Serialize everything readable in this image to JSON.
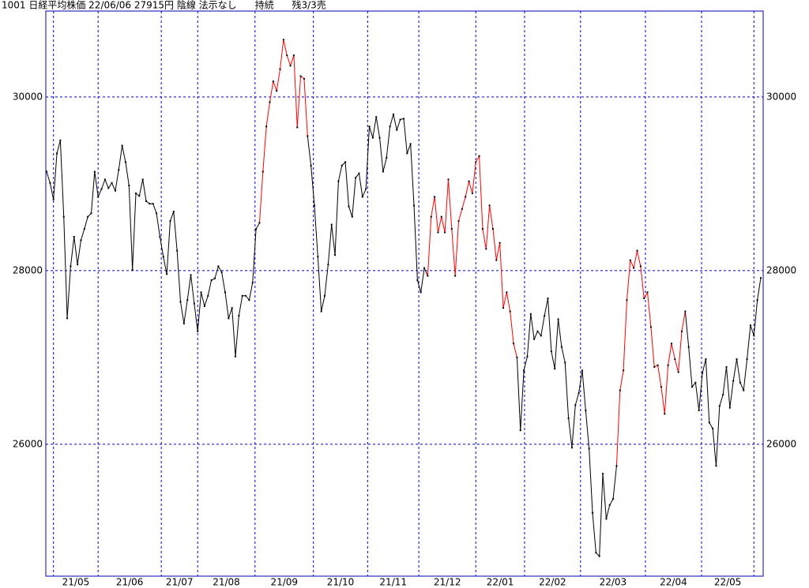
{
  "chart_data": {
    "type": "line",
    "title": "1001 日経平均株価 22/06/06 27915円 陰線 法示なし      持続      残3/3売",
    "values": [
      29140,
      29010,
      28820,
      29350,
      29500,
      28620,
      27450,
      28050,
      28390,
      28070,
      28350,
      28480,
      28620,
      28660,
      29140,
      28850,
      28940,
      29050,
      28950,
      29010,
      28920,
      29160,
      29440,
      29250,
      28980,
      28010,
      28890,
      28860,
      29050,
      28800,
      28770,
      28770,
      28660,
      28390,
      28160,
      27960,
      28570,
      28680,
      28230,
      27640,
      27390,
      27660,
      27950,
      27620,
      27300,
      27750,
      27590,
      27710,
      27890,
      27910,
      28050,
      27980,
      27750,
      27450,
      27570,
      27010,
      27480,
      27710,
      27710,
      27660,
      27860,
      28480,
      28550,
      29140,
      29660,
      29940,
      30180,
      30070,
      30320,
      30660,
      30480,
      30360,
      30480,
      29650,
      30240,
      30210,
      29550,
      29210,
      28750,
      28160,
      27530,
      27710,
      28070,
      28530,
      28180,
      29030,
      29210,
      29250,
      28740,
      28620,
      29070,
      29120,
      28850,
      28940,
      29660,
      29530,
      29770,
      29530,
      29140,
      29300,
      29660,
      29800,
      29620,
      29740,
      29750,
      29350,
      29460,
      28750,
      27890,
      27750,
      28030,
      27940,
      28620,
      28850,
      28440,
      28620,
      28440,
      29050,
      28480,
      27940,
      28570,
      28710,
      28850,
      29030,
      28890,
      29250,
      29320,
      28480,
      28250,
      28750,
      28480,
      28120,
      28320,
      27570,
      27750,
      27530,
      27160,
      27000,
      26160,
      26850,
      27010,
      27500,
      27210,
      27300,
      27250,
      27480,
      27680,
      27070,
      26870,
      27440,
      27120,
      26940,
      26300,
      25960,
      26450,
      26590,
      26850,
      26390,
      25950,
      25210,
      24750,
      24710,
      25660,
      25140,
      25300,
      25370,
      25750,
      26620,
      26850,
      27660,
      28120,
      28030,
      28230,
      28050,
      27680,
      27750,
      27350,
      26890,
      26910,
      26660,
      26350,
      26910,
      27160,
      26980,
      26830,
      27300,
      27530,
      27120,
      26660,
      26710,
      26390,
      26820,
      26980,
      26250,
      26180,
      25750,
      26440,
      26570,
      26890,
      26420,
      26730,
      26980,
      26710,
      26620,
      26980,
      27370,
      27250,
      27660,
      27915
    ],
    "segment_colors": [
      "black",
      "black",
      "black",
      "black",
      "black",
      "black",
      "black",
      "black",
      "black",
      "black",
      "black",
      "black",
      "black",
      "black",
      "black",
      "black",
      "black",
      "black",
      "black",
      "black",
      "black",
      "black",
      "black",
      "black",
      "black",
      "black",
      "black",
      "black",
      "black",
      "black",
      "black",
      "black",
      "black",
      "black",
      "black",
      "black",
      "black",
      "black",
      "black",
      "black",
      "black",
      "black",
      "black",
      "black",
      "black",
      "black",
      "black",
      "black",
      "black",
      "black",
      "black",
      "black",
      "black",
      "black",
      "black",
      "black",
      "black",
      "black",
      "black",
      "black",
      "black",
      "black",
      "black",
      "red",
      "red",
      "red",
      "red",
      "red",
      "red",
      "red",
      "red",
      "red",
      "red",
      "red",
      "red",
      "red",
      "red",
      "black",
      "black",
      "black",
      "black",
      "black",
      "black",
      "black",
      "black",
      "black",
      "black",
      "black",
      "black",
      "black",
      "black",
      "black",
      "black",
      "black",
      "black",
      "black",
      "black",
      "black",
      "black",
      "black",
      "black",
      "black",
      "black",
      "black",
      "black",
      "black",
      "black",
      "black",
      "black",
      "black",
      "black",
      "black",
      "red",
      "red",
      "red",
      "red",
      "red",
      "red",
      "red",
      "red",
      "red",
      "red",
      "red",
      "red",
      "red",
      "red",
      "red",
      "red",
      "red",
      "red",
      "red",
      "red",
      "red",
      "red",
      "red",
      "red",
      "red",
      "red",
      "black",
      "black",
      "black",
      "black",
      "black",
      "black",
      "black",
      "black",
      "black",
      "black",
      "black",
      "black",
      "black",
      "black",
      "black",
      "black",
      "black",
      "black",
      "black",
      "black",
      "black",
      "black",
      "black",
      "black",
      "black",
      "black",
      "black",
      "black",
      "black",
      "red",
      "red",
      "red",
      "red",
      "red",
      "red",
      "red",
      "red",
      "red",
      "red",
      "red",
      "red",
      "red",
      "red",
      "red",
      "red",
      "red",
      "red",
      "red",
      "red",
      "black",
      "black",
      "black",
      "black",
      "black",
      "black",
      "black",
      "black",
      "black",
      "black",
      "black",
      "black",
      "black",
      "black",
      "black",
      "black",
      "black",
      "black",
      "black",
      "black",
      "black",
      "black"
    ],
    "point_color": "black",
    "xlim": [
      -0.23,
      208.7
    ],
    "xticks": [
      {
        "value": 2,
        "label": "21/05"
      },
      {
        "value": 15,
        "label": "21/06"
      },
      {
        "value": 33.4,
        "label": "21/07"
      },
      {
        "value": 44,
        "label": "21/08"
      },
      {
        "value": 60.7,
        "label": "21/09"
      },
      {
        "value": 77.7,
        "label": "21/10"
      },
      {
        "value": 93.5,
        "label": "21/11"
      },
      {
        "value": 108.4,
        "label": "21/12"
      },
      {
        "value": 125,
        "label": "22/01"
      },
      {
        "value": 139.2,
        "label": "22/02"
      },
      {
        "value": 155.5,
        "label": "22/03"
      },
      {
        "value": 174.4,
        "label": "22/04"
      },
      {
        "value": 190.75,
        "label": "22/05"
      },
      {
        "value": 206,
        "label": null
      }
    ],
    "ylim": [
      24480,
      30990
    ],
    "yticks": [
      26000,
      28000,
      30000
    ],
    "grid": true,
    "grid_color": "#0000cc",
    "frame_color": "#0000aa"
  }
}
